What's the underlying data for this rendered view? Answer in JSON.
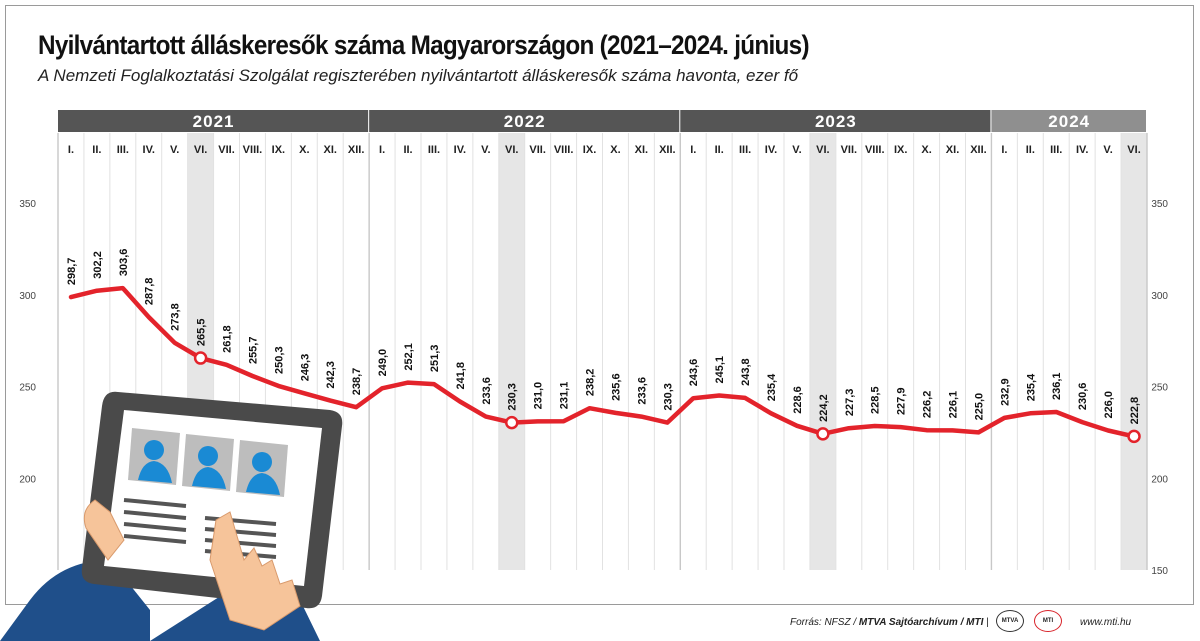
{
  "chart_data": {
    "type": "line",
    "title": "Nyilvántartott álláskeresők száma Magyarországon (2021–2024. június)",
    "subtitle": "A Nemzeti Foglalkoztatási Szolgálat regiszterében nyilvántartott álláskeresők száma havonta, ezer fő",
    "years": [
      "2021",
      "2022",
      "2023",
      "2024"
    ],
    "months": [
      "I.",
      "II.",
      "III.",
      "IV.",
      "V.",
      "VI.",
      "VII.",
      "VIII.",
      "IX.",
      "X.",
      "XI.",
      "XII."
    ],
    "x": [
      "2021-01",
      "2021-02",
      "2021-03",
      "2021-04",
      "2021-05",
      "2021-06",
      "2021-07",
      "2021-08",
      "2021-09",
      "2021-10",
      "2021-11",
      "2021-12",
      "2022-01",
      "2022-02",
      "2022-03",
      "2022-04",
      "2022-05",
      "2022-06",
      "2022-07",
      "2022-08",
      "2022-09",
      "2022-10",
      "2022-11",
      "2022-12",
      "2023-01",
      "2023-02",
      "2023-03",
      "2023-04",
      "2023-05",
      "2023-06",
      "2023-07",
      "2023-08",
      "2023-09",
      "2023-10",
      "2023-11",
      "2023-12",
      "2024-01",
      "2024-02",
      "2024-03",
      "2024-04",
      "2024-05",
      "2024-06"
    ],
    "values": [
      298.7,
      302.2,
      303.6,
      287.8,
      273.8,
      265.5,
      261.8,
      255.7,
      250.3,
      246.3,
      242.3,
      238.7,
      249.0,
      252.1,
      251.3,
      241.8,
      233.6,
      230.3,
      231.0,
      231.1,
      238.2,
      235.6,
      233.6,
      230.3,
      243.6,
      245.1,
      243.8,
      235.4,
      228.6,
      224.2,
      227.3,
      228.5,
      227.9,
      226.2,
      226.1,
      225.0,
      232.9,
      235.4,
      236.1,
      230.6,
      226.0,
      222.8
    ],
    "value_labels": [
      "298,7",
      "302,2",
      "303,6",
      "287,8",
      "273,8",
      "265,5",
      "261,8",
      "255,7",
      "250,3",
      "246,3",
      "242,3",
      "238,7",
      "249,0",
      "252,1",
      "251,3",
      "241,8",
      "233,6",
      "230,3",
      "231,0",
      "231,1",
      "238,2",
      "235,6",
      "233,6",
      "230,3",
      "243,6",
      "245,1",
      "243,8",
      "235,4",
      "228,6",
      "224,2",
      "227,3",
      "228,5",
      "227,9",
      "226,2",
      "226,1",
      "225,0",
      "232,9",
      "235,4",
      "236,1",
      "230,6",
      "226,0",
      "222,8"
    ],
    "highlighted_markers": [
      "2021-06",
      "2022-06",
      "2023-06",
      "2024-06"
    ],
    "yticks": [
      "150",
      "200",
      "250",
      "300",
      "350"
    ],
    "ylim": [
      150,
      350
    ],
    "colors": {
      "line": "#e3232b",
      "year_bar": "#555555",
      "year_bar_last": "#8f8f8f",
      "june_column": "#e6e6e6",
      "grid": "#e2e2e2"
    }
  },
  "footer": {
    "source_prefix": "Forrás: NFSZ / ",
    "source_bold": "MTVA Sajtóarchívum / MTI",
    "logo_mtva": "MTVA",
    "logo_mti": "MTI",
    "url": "www.mti.hu"
  }
}
